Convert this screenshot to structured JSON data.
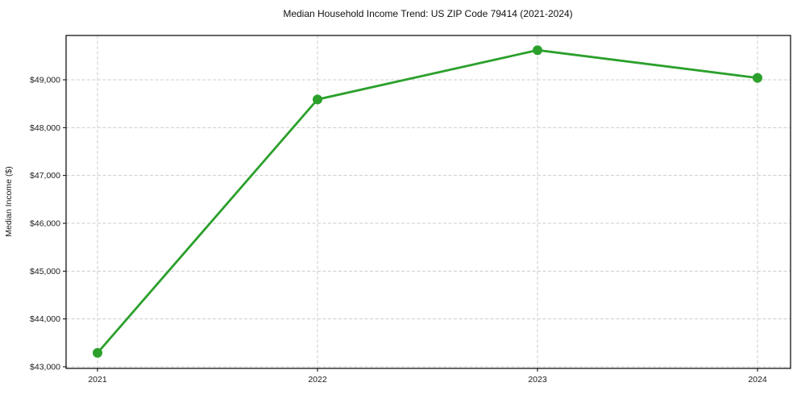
{
  "chart_data": {
    "type": "line",
    "title": "Median Household Income Trend: US ZIP Code 79414 (2021-2024)",
    "ylabel": "Median Income ($)",
    "xlabel": "",
    "categories": [
      "2021",
      "2022",
      "2023",
      "2024"
    ],
    "series": [
      {
        "name": "Median Household Income",
        "values": [
          43290,
          48590,
          49620,
          49040
        ],
        "color": "#2ca02c",
        "marker": "circle",
        "marker_radius": 6,
        "line_width": 2.8
      }
    ],
    "yticks": [
      {
        "value": 43000,
        "label": "$43,000"
      },
      {
        "value": 44000,
        "label": "$44,000"
      },
      {
        "value": 45000,
        "label": "$45,000"
      },
      {
        "value": 46000,
        "label": "$46,000"
      },
      {
        "value": 47000,
        "label": "$47,000"
      },
      {
        "value": 48000,
        "label": "$48,000"
      },
      {
        "value": 49000,
        "label": "$49,000"
      }
    ],
    "ylim": [
      42966,
      49927
    ],
    "grid": true,
    "grid_style": "dashed",
    "grid_color": "#cccccc",
    "legend_position": "none",
    "background": "#ffffff",
    "frame_color": "#000000"
  }
}
